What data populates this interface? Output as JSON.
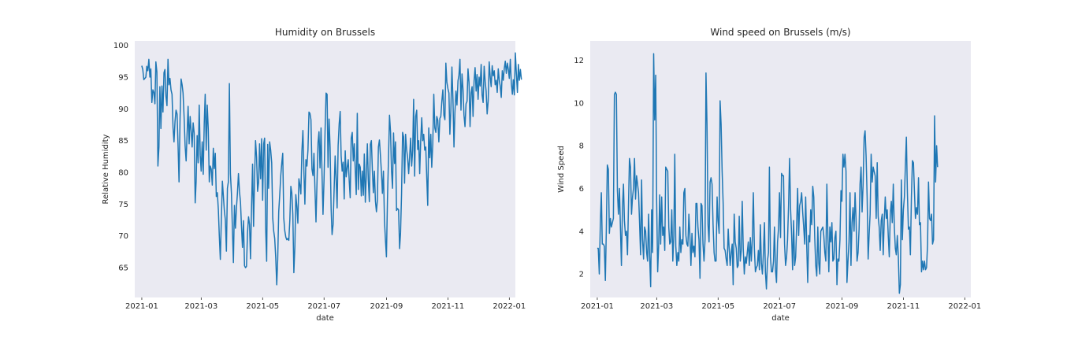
{
  "chart_data": [
    {
      "type": "line",
      "title": "Humidity on Brussels",
      "xlabel": "date",
      "ylabel": "Relative Humidity",
      "x_range": [
        "2020-12-25",
        "2022-01-07"
      ],
      "ylim": [
        60.3,
        100.7
      ],
      "x_ticks": [
        "2021-01",
        "2021-03",
        "2021-05",
        "2021-07",
        "2021-09",
        "2021-11",
        "2022-01"
      ],
      "y_ticks": [
        65,
        70,
        75,
        80,
        85,
        90,
        95,
        100
      ],
      "grid": false,
      "line_color": "#1f77b4",
      "background": "#eaeaf2",
      "series": [
        {
          "start_date": "2021-01-01",
          "step_days": 1,
          "values": [
            96.8,
            96.2,
            94.6,
            94.8,
            95.0,
            96.7,
            96.0,
            97.8,
            95.0,
            96.3,
            91.0,
            93.0,
            92.6,
            90.8,
            97.4,
            95.8,
            81.0,
            84.0,
            93.5,
            86.9,
            93.6,
            89.5,
            95.7,
            96.2,
            92.0,
            90.5,
            97.8,
            93.8,
            94.8,
            93.0,
            92.3,
            87.0,
            84.8,
            88.0,
            89.8,
            89.2,
            84.5,
            78.5,
            88.5,
            94.7,
            93.8,
            92.5,
            88.8,
            84.2,
            81.8,
            86.0,
            90.4,
            84.5,
            88.8,
            86.5,
            84.0,
            87.8,
            86.2,
            75.2,
            78.6,
            85.8,
            81.5,
            90.6,
            82.7,
            80.2,
            84.8,
            79.7,
            87.8,
            92.3,
            83.5,
            90.6,
            86.8,
            78.5,
            81.0,
            80.5,
            78.0,
            83.8,
            80.6,
            83.0,
            76.2,
            76.8,
            74.1,
            70.0,
            66.3,
            72.6,
            78.6,
            76.4,
            74.0,
            72.5,
            67.6,
            77.5,
            78.5,
            94.0,
            79.8,
            76.7,
            71.2,
            65.8,
            74.8,
            71.2,
            74.5,
            76.7,
            79.8,
            77.0,
            75.3,
            71.6,
            68.2,
            72.4,
            65.3,
            65.0,
            65.2,
            70.5,
            73.0,
            71.8,
            66.4,
            74.5,
            81.3,
            71.5,
            79.4,
            85.0,
            82.4,
            77.0,
            78.5,
            84.5,
            79.0,
            85.3,
            75.6,
            84.5,
            85.4,
            71.2,
            66.0,
            84.4,
            77.5,
            84.8,
            83.5,
            81.5,
            72.8,
            70.8,
            69.6,
            66.6,
            62.3,
            66.3,
            73.8,
            76.5,
            79.5,
            81.5,
            83.0,
            72.8,
            70.8,
            69.8,
            69.4,
            69.6,
            69.3,
            72.5,
            77.8,
            76.8,
            73.4,
            64.2,
            68.3,
            76.5,
            74.6,
            72.0,
            79.0,
            78.0,
            76.6,
            83.3,
            86.6,
            80.0,
            75.0,
            82.0,
            81.0,
            83.5,
            89.5,
            89.3,
            88.3,
            80.5,
            79.5,
            83.0,
            77.3,
            72.2,
            78.5,
            84.7,
            86.4,
            80.7,
            87.0,
            79.5,
            73.4,
            78.8,
            86.4,
            92.5,
            92.3,
            80.8,
            88.4,
            83.9,
            74.3,
            70.2,
            71.8,
            77.3,
            82.6,
            78.8,
            74.4,
            84.2,
            87.6,
            89.6,
            82.6,
            80.2,
            81.6,
            75.8,
            83.4,
            79.3,
            80.8,
            82.0,
            78.6,
            76.0,
            85.4,
            86.3,
            81.8,
            84.5,
            80.5,
            76.5,
            89.3,
            77.3,
            81.3,
            80.8,
            76.3,
            80.2,
            76.4,
            82.9,
            75.3,
            79.8,
            84.5,
            78.8,
            75.4,
            84.4,
            85.0,
            80.2,
            76.8,
            80.2,
            75.5,
            73.8,
            75.6,
            84.0,
            85.1,
            82.6,
            79.9,
            76.7,
            80.2,
            72.4,
            69.2,
            66.7,
            75.8,
            82.2,
            89.0,
            86.4,
            80.4,
            77.5,
            86.2,
            81.4,
            84.8,
            74.0,
            74.3,
            74.1,
            68.0,
            70.5,
            76.7,
            86.3,
            85.6,
            78.3,
            86.0,
            83.6,
            82.3,
            79.8,
            82.4,
            85.4,
            81.0,
            83.5,
            91.5,
            79.4,
            88.8,
            89.8,
            83.6,
            85.0,
            79.8,
            85.0,
            88.6,
            85.0,
            86.0,
            83.5,
            84.0,
            79.0,
            74.8,
            87.0,
            82.3,
            86.0,
            80.8,
            84.5,
            92.3,
            87.0,
            86.3,
            88.8,
            88.2,
            84.8,
            88.5,
            88.8,
            91.2,
            93.0,
            89.0,
            88.3,
            97.2,
            94.2,
            93.2,
            92.5,
            86.0,
            90.0,
            96.6,
            91.5,
            84.0,
            89.4,
            92.8,
            90.6,
            94.4,
            95.3,
            97.8,
            89.8,
            95.5,
            93.0,
            89.0,
            87.2,
            90.8,
            91.2,
            96.3,
            94.2,
            87.2,
            92.5,
            93.5,
            88.8,
            94.4,
            96.5,
            92.8,
            95.4,
            91.5,
            95.0,
            93.6,
            97.0,
            92.2,
            91.0,
            96.7,
            94.3,
            92.8,
            89.2,
            91.2,
            97.4,
            95.0,
            93.5,
            96.8,
            95.2,
            96.0,
            93.8,
            94.5,
            92.6,
            96.3,
            94.5,
            93.6,
            91.8,
            96.0,
            94.5,
            96.3,
            97.5,
            95.6,
            97.2,
            96.2,
            94.8,
            97.8,
            94.0,
            92.3,
            94.6,
            92.2,
            98.8,
            95.5,
            92.6,
            97.0,
            94.5,
            96.2,
            94.6
          ]
        }
      ]
    },
    {
      "type": "line",
      "title": "Wind speed on Brussels (m/s)",
      "xlabel": "date",
      "ylabel": "Wind Speed",
      "x_range": [
        "2020-12-25",
        "2022-01-07"
      ],
      "ylim": [
        0.9,
        12.9
      ],
      "x_ticks": [
        "2021-01",
        "2021-03",
        "2021-05",
        "2021-07",
        "2021-09",
        "2021-11",
        "2022-01"
      ],
      "y_ticks": [
        2,
        4,
        6,
        8,
        10,
        12
      ],
      "grid": false,
      "line_color": "#1f77b4",
      "background": "#eaeaf2",
      "series": [
        {
          "start_date": "2021-01-01",
          "step_days": 1,
          "values": [
            3.2,
            3.2,
            2.0,
            4.3,
            5.8,
            3.4,
            3.4,
            3.3,
            1.7,
            4.0,
            7.1,
            6.9,
            3.9,
            4.6,
            4.2,
            4.4,
            4.6,
            10.4,
            10.5,
            10.4,
            5.9,
            4.8,
            6.0,
            4.2,
            2.4,
            5.1,
            6.2,
            4.5,
            3.8,
            4.0,
            2.9,
            5.3,
            7.4,
            7.0,
            4.8,
            5.6,
            6.0,
            7.4,
            5.5,
            6.6,
            6.2,
            5.8,
            4.4,
            2.9,
            6.4,
            3.6,
            2.7,
            4.2,
            4.0,
            3.0,
            2.6,
            4.8,
            2.8,
            1.4,
            5.0,
            3.0,
            12.3,
            9.2,
            11.3,
            5.4,
            2.1,
            3.4,
            5.7,
            3.4,
            5.6,
            3.8,
            4.2,
            3.1,
            7.0,
            6.9,
            6.8,
            4.2,
            3.4,
            3.5,
            5.0,
            2.6,
            3.8,
            7.6,
            3.3,
            2.4,
            3.0,
            2.6,
            4.2,
            3.0,
            3.6,
            3.4,
            5.8,
            6.0,
            3.8,
            3.4,
            3.3,
            4.8,
            3.8,
            2.4,
            3.9,
            3.0,
            3.3,
            2.8,
            5.3,
            5.3,
            4.2,
            3.6,
            1.8,
            5.3,
            5.2,
            3.4,
            2.6,
            3.6,
            11.4,
            9.0,
            4.3,
            3.5,
            6.3,
            6.5,
            6.2,
            4.3,
            3.0,
            2.6,
            2.6,
            5.6,
            4.5,
            3.9,
            10.1,
            9.0,
            6.8,
            5.3,
            3.2,
            3.1,
            2.7,
            2.4,
            4.1,
            3.2,
            2.4,
            3.0,
            3.4,
            1.5,
            4.8,
            3.5,
            3.2,
            2.3,
            2.4,
            4.7,
            2.6,
            3.1,
            5.4,
            3.2,
            2.0,
            2.8,
            2.5,
            3.0,
            3.5,
            2.4,
            3.7,
            2.6,
            3.6,
            5.8,
            3.2,
            2.1,
            2.3,
            2.4,
            3.1,
            2.2,
            4.3,
            2.5,
            2.0,
            3.0,
            4.4,
            2.1,
            1.3,
            2.6,
            3.0,
            7.0,
            2.8,
            2.1,
            2.1,
            2.6,
            4.2,
            2.2,
            1.6,
            3.5,
            4.1,
            5.8,
            3.7,
            6.7,
            6.6,
            6.6,
            3.4,
            2.4,
            2.8,
            3.6,
            5.2,
            7.4,
            5.0,
            3.8,
            2.2,
            4.5,
            2.4,
            2.8,
            4.2,
            6.0,
            3.8,
            5.2,
            5.4,
            5.8,
            4.9,
            4.2,
            3.4,
            5.6,
            3.4,
            1.6,
            3.8,
            3.5,
            5.0,
            4.3,
            6.1,
            5.6,
            3.7,
            2.4,
            1.9,
            4.2,
            2.5,
            2.0,
            4.0,
            4.1,
            4.2,
            3.8,
            3.0,
            2.6,
            6.2,
            3.8,
            2.1,
            4.2,
            3.5,
            4.4,
            2.6,
            2.7,
            3.7,
            4.0,
            1.5,
            2.7,
            2.6,
            3.6,
            5.9,
            5.4,
            7.6,
            7.0,
            7.6,
            6.8,
            1.6,
            2.6,
            3.5,
            5.8,
            2.4,
            4.4,
            5.1,
            4.0,
            5.8,
            4.6,
            2.6,
            3.0,
            4.1,
            6.2,
            7.0,
            4.9,
            6.2,
            8.4,
            8.7,
            7.5,
            5.6,
            2.7,
            3.8,
            4.8,
            7.6,
            6.3,
            7.0,
            6.8,
            6.6,
            4.6,
            7.2,
            4.7,
            4.2,
            3.1,
            4.5,
            4.8,
            2.9,
            4.5,
            5.6,
            4.6,
            5.0,
            3.8,
            2.8,
            4.8,
            5.4,
            4.4,
            6.2,
            4.2,
            3.2,
            2.9,
            3.8,
            2.8,
            1.1,
            1.5,
            6.4,
            3.6,
            5.0,
            5.6,
            7.0,
            8.4,
            5.8,
            4.1,
            4.2,
            2.9,
            5.6,
            7.3,
            7.2,
            5.9,
            4.6,
            5.1,
            4.8,
            6.5,
            4.3,
            4.4,
            2.1,
            2.6,
            2.2,
            2.6,
            2.2,
            2.3,
            3.4,
            6.3,
            4.6,
            4.5,
            4.8,
            3.4,
            3.6,
            9.4,
            6.3,
            8.0,
            7.0
          ]
        }
      ]
    }
  ]
}
